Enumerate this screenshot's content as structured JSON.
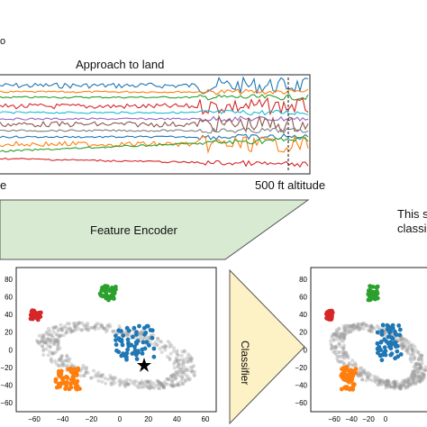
{
  "top_panel": {
    "title": "Approach to land",
    "left_label_partial": "e",
    "right_label": "500 ft altitude",
    "corner_fragment": "o"
  },
  "encoder": {
    "label": "Feature Encoder"
  },
  "classifier": {
    "label": "Classifier"
  },
  "right_caption": {
    "line1": "This sa",
    "line2": "classi"
  },
  "left_scatter": {
    "yticks": [
      "80",
      "60",
      "40",
      "20",
      "0",
      "−20",
      "−40",
      "−60"
    ],
    "xticks": [
      "−60",
      "−40",
      "−20",
      "0",
      "20",
      "40",
      "60"
    ]
  },
  "right_scatter": {
    "yticks": [
      "80",
      "60",
      "40",
      "20",
      "0",
      "−20",
      "−40",
      "−60"
    ],
    "xticks": [
      "−60",
      "−40",
      "−20",
      "0"
    ]
  },
  "colors": {
    "encoder_fill": "#d9ead3",
    "classifier_fill": "#fdf1c6",
    "series": [
      "#1f77b4",
      "#ff7f0e",
      "#2ca02c",
      "#d62728",
      "#17becf",
      "#9467bd",
      "#8c564b",
      "#7f7f7f"
    ]
  }
}
